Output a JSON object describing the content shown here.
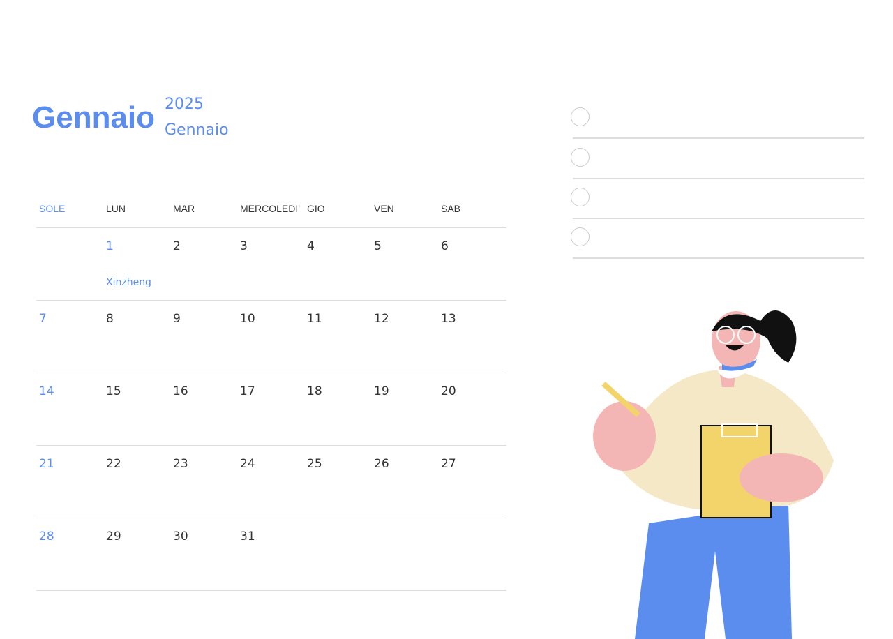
{
  "header": {
    "month_title": "Gennaio",
    "year": "2025",
    "month_subtitle": "Gennaio"
  },
  "calendar": {
    "weekdays": [
      "SOLE",
      "LUN",
      "MAR",
      "MERCOLEDI'",
      "GIO",
      "VEN",
      "SAB"
    ],
    "weeks": [
      [
        "",
        "1",
        "2",
        "3",
        "4",
        "5",
        "6"
      ],
      [
        "7",
        "8",
        "9",
        "10",
        "11",
        "12",
        "13"
      ],
      [
        "14",
        "15",
        "16",
        "17",
        "18",
        "19",
        "20"
      ],
      [
        "21",
        "22",
        "23",
        "24",
        "25",
        "26",
        "27"
      ],
      [
        "28",
        "29",
        "30",
        "31",
        "",
        "",
        ""
      ]
    ],
    "holiday_note": "Xinzheng",
    "accent_color": "#5b8def"
  },
  "todo": {
    "items": 4
  }
}
